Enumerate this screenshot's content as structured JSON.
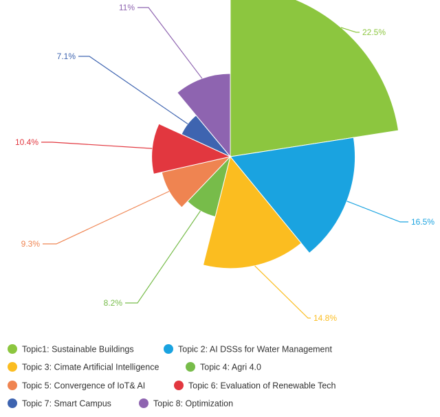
{
  "chart_data": {
    "type": "pie",
    "variant": "variable-radius (nightingale/rose)",
    "title": "",
    "legend_position": "bottom",
    "series": [
      {
        "name": "Topic1: Sustainable Buildings",
        "value": 22.5,
        "label": "22.5%",
        "color": "#8cc63f"
      },
      {
        "name": "Topic 2: AI DSSs for Water Management",
        "value": 16.5,
        "label": "16.5%",
        "color": "#1aa3e0"
      },
      {
        "name": "Topic 3: Cimate Artificial Intelligence",
        "value": 14.8,
        "label": "14.8%",
        "color": "#fbbd20"
      },
      {
        "name": "Topic 4: Agri 4.0",
        "value": 8.2,
        "label": "8.2%",
        "color": "#77bc4a"
      },
      {
        "name": "Topic 5: Convergence of IoT& AI",
        "value": 9.3,
        "label": "9.3%",
        "color": "#ef8451"
      },
      {
        "name": "Topic 6: Evaluation of Renewable Tech",
        "value": 10.4,
        "label": "10.4%",
        "color": "#e2373f"
      },
      {
        "name": "Topic 7: Smart Campus",
        "value": 7.1,
        "label": "7.1%",
        "color": "#3e64b0"
      },
      {
        "name": "Topic 8: Optimization",
        "value": 11,
        "label": "11%",
        "color": "#8e64b0"
      }
    ]
  }
}
